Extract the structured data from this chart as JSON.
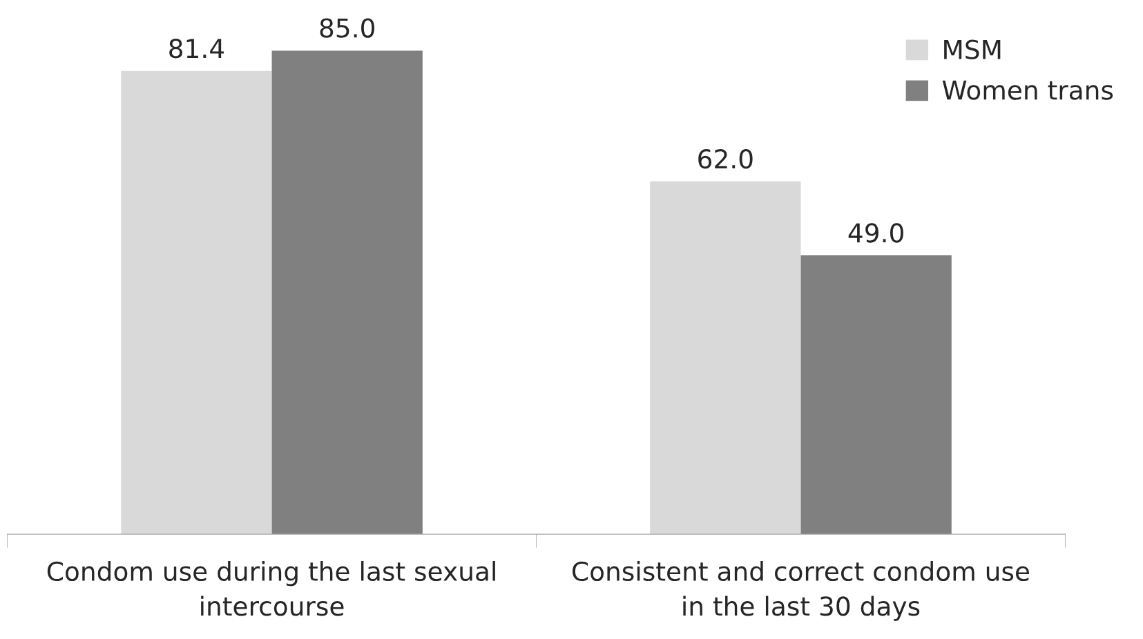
{
  "chart_data": {
    "type": "bar",
    "categories": [
      "Condom use during the last sexual\nintercourse",
      "Consistent and correct condom use\nin the last 30 days"
    ],
    "series": [
      {
        "name": "MSM",
        "color": "#d9d9d9",
        "values": [
          81.4,
          62.0
        ],
        "value_labels": [
          "81.4",
          "62.0"
        ]
      },
      {
        "name": "Women trans",
        "color": "#808080",
        "values": [
          85.0,
          49.0
        ],
        "value_labels": [
          "85.0",
          "49.0"
        ]
      }
    ],
    "grid": false,
    "legend": "top right"
  }
}
